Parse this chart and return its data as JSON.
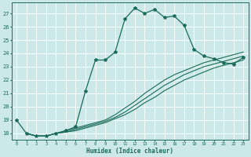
{
  "xlabel": "Humidex (Indice chaleur)",
  "xlim": [
    -0.5,
    23.5
  ],
  "ylim": [
    17.5,
    27.8
  ],
  "xticks": [
    0,
    1,
    2,
    3,
    4,
    5,
    6,
    7,
    8,
    9,
    10,
    11,
    12,
    13,
    14,
    15,
    16,
    17,
    18,
    19,
    20,
    21,
    22,
    23
  ],
  "yticks": [
    18,
    19,
    20,
    21,
    22,
    23,
    24,
    25,
    26,
    27
  ],
  "bg_color": "#cce8e8",
  "line_color": "#1a6b5a",
  "grid_color": "#ffffff",
  "lines": [
    {
      "x": [
        0,
        1,
        2,
        3,
        4,
        5,
        6,
        7,
        8,
        9,
        10,
        11,
        12,
        13,
        14,
        15,
        16,
        17,
        18,
        19,
        20,
        21,
        22,
        23
      ],
      "y": [
        19.0,
        18.0,
        17.8,
        17.8,
        18.0,
        18.2,
        18.5,
        21.2,
        23.5,
        23.5,
        24.1,
        26.6,
        27.4,
        27.0,
        27.3,
        26.7,
        26.8,
        26.1,
        24.3,
        23.8,
        23.6,
        23.3,
        23.2,
        23.7
      ],
      "marker": true
    },
    {
      "x": [
        1,
        2,
        3,
        4,
        5,
        6,
        7,
        8,
        9,
        10,
        11,
        12,
        13,
        14,
        15,
        16,
        17,
        18,
        19,
        20,
        21,
        22,
        23
      ],
      "y": [
        18.0,
        17.8,
        17.8,
        18.0,
        18.2,
        18.4,
        18.6,
        18.8,
        19.0,
        19.4,
        19.9,
        20.4,
        21.0,
        21.5,
        22.0,
        22.4,
        22.7,
        23.0,
        23.3,
        23.5,
        23.7,
        23.9,
        24.1
      ],
      "marker": false
    },
    {
      "x": [
        1,
        2,
        3,
        4,
        5,
        6,
        7,
        8,
        9,
        10,
        11,
        12,
        13,
        14,
        15,
        16,
        17,
        18,
        19,
        20,
        21,
        22,
        23
      ],
      "y": [
        18.0,
        17.8,
        17.8,
        18.0,
        18.1,
        18.3,
        18.5,
        18.7,
        18.9,
        19.2,
        19.6,
        20.1,
        20.6,
        21.1,
        21.6,
        22.0,
        22.4,
        22.7,
        23.0,
        23.2,
        23.4,
        23.6,
        23.8
      ],
      "marker": false
    },
    {
      "x": [
        1,
        2,
        3,
        4,
        5,
        6,
        7,
        8,
        9,
        10,
        11,
        12,
        13,
        14,
        15,
        16,
        17,
        18,
        19,
        20,
        21,
        22,
        23
      ],
      "y": [
        18.0,
        17.8,
        17.8,
        18.0,
        18.1,
        18.2,
        18.4,
        18.6,
        18.8,
        19.1,
        19.4,
        19.8,
        20.3,
        20.7,
        21.2,
        21.6,
        22.0,
        22.3,
        22.6,
        22.9,
        23.1,
        23.3,
        23.5
      ],
      "marker": false
    }
  ]
}
